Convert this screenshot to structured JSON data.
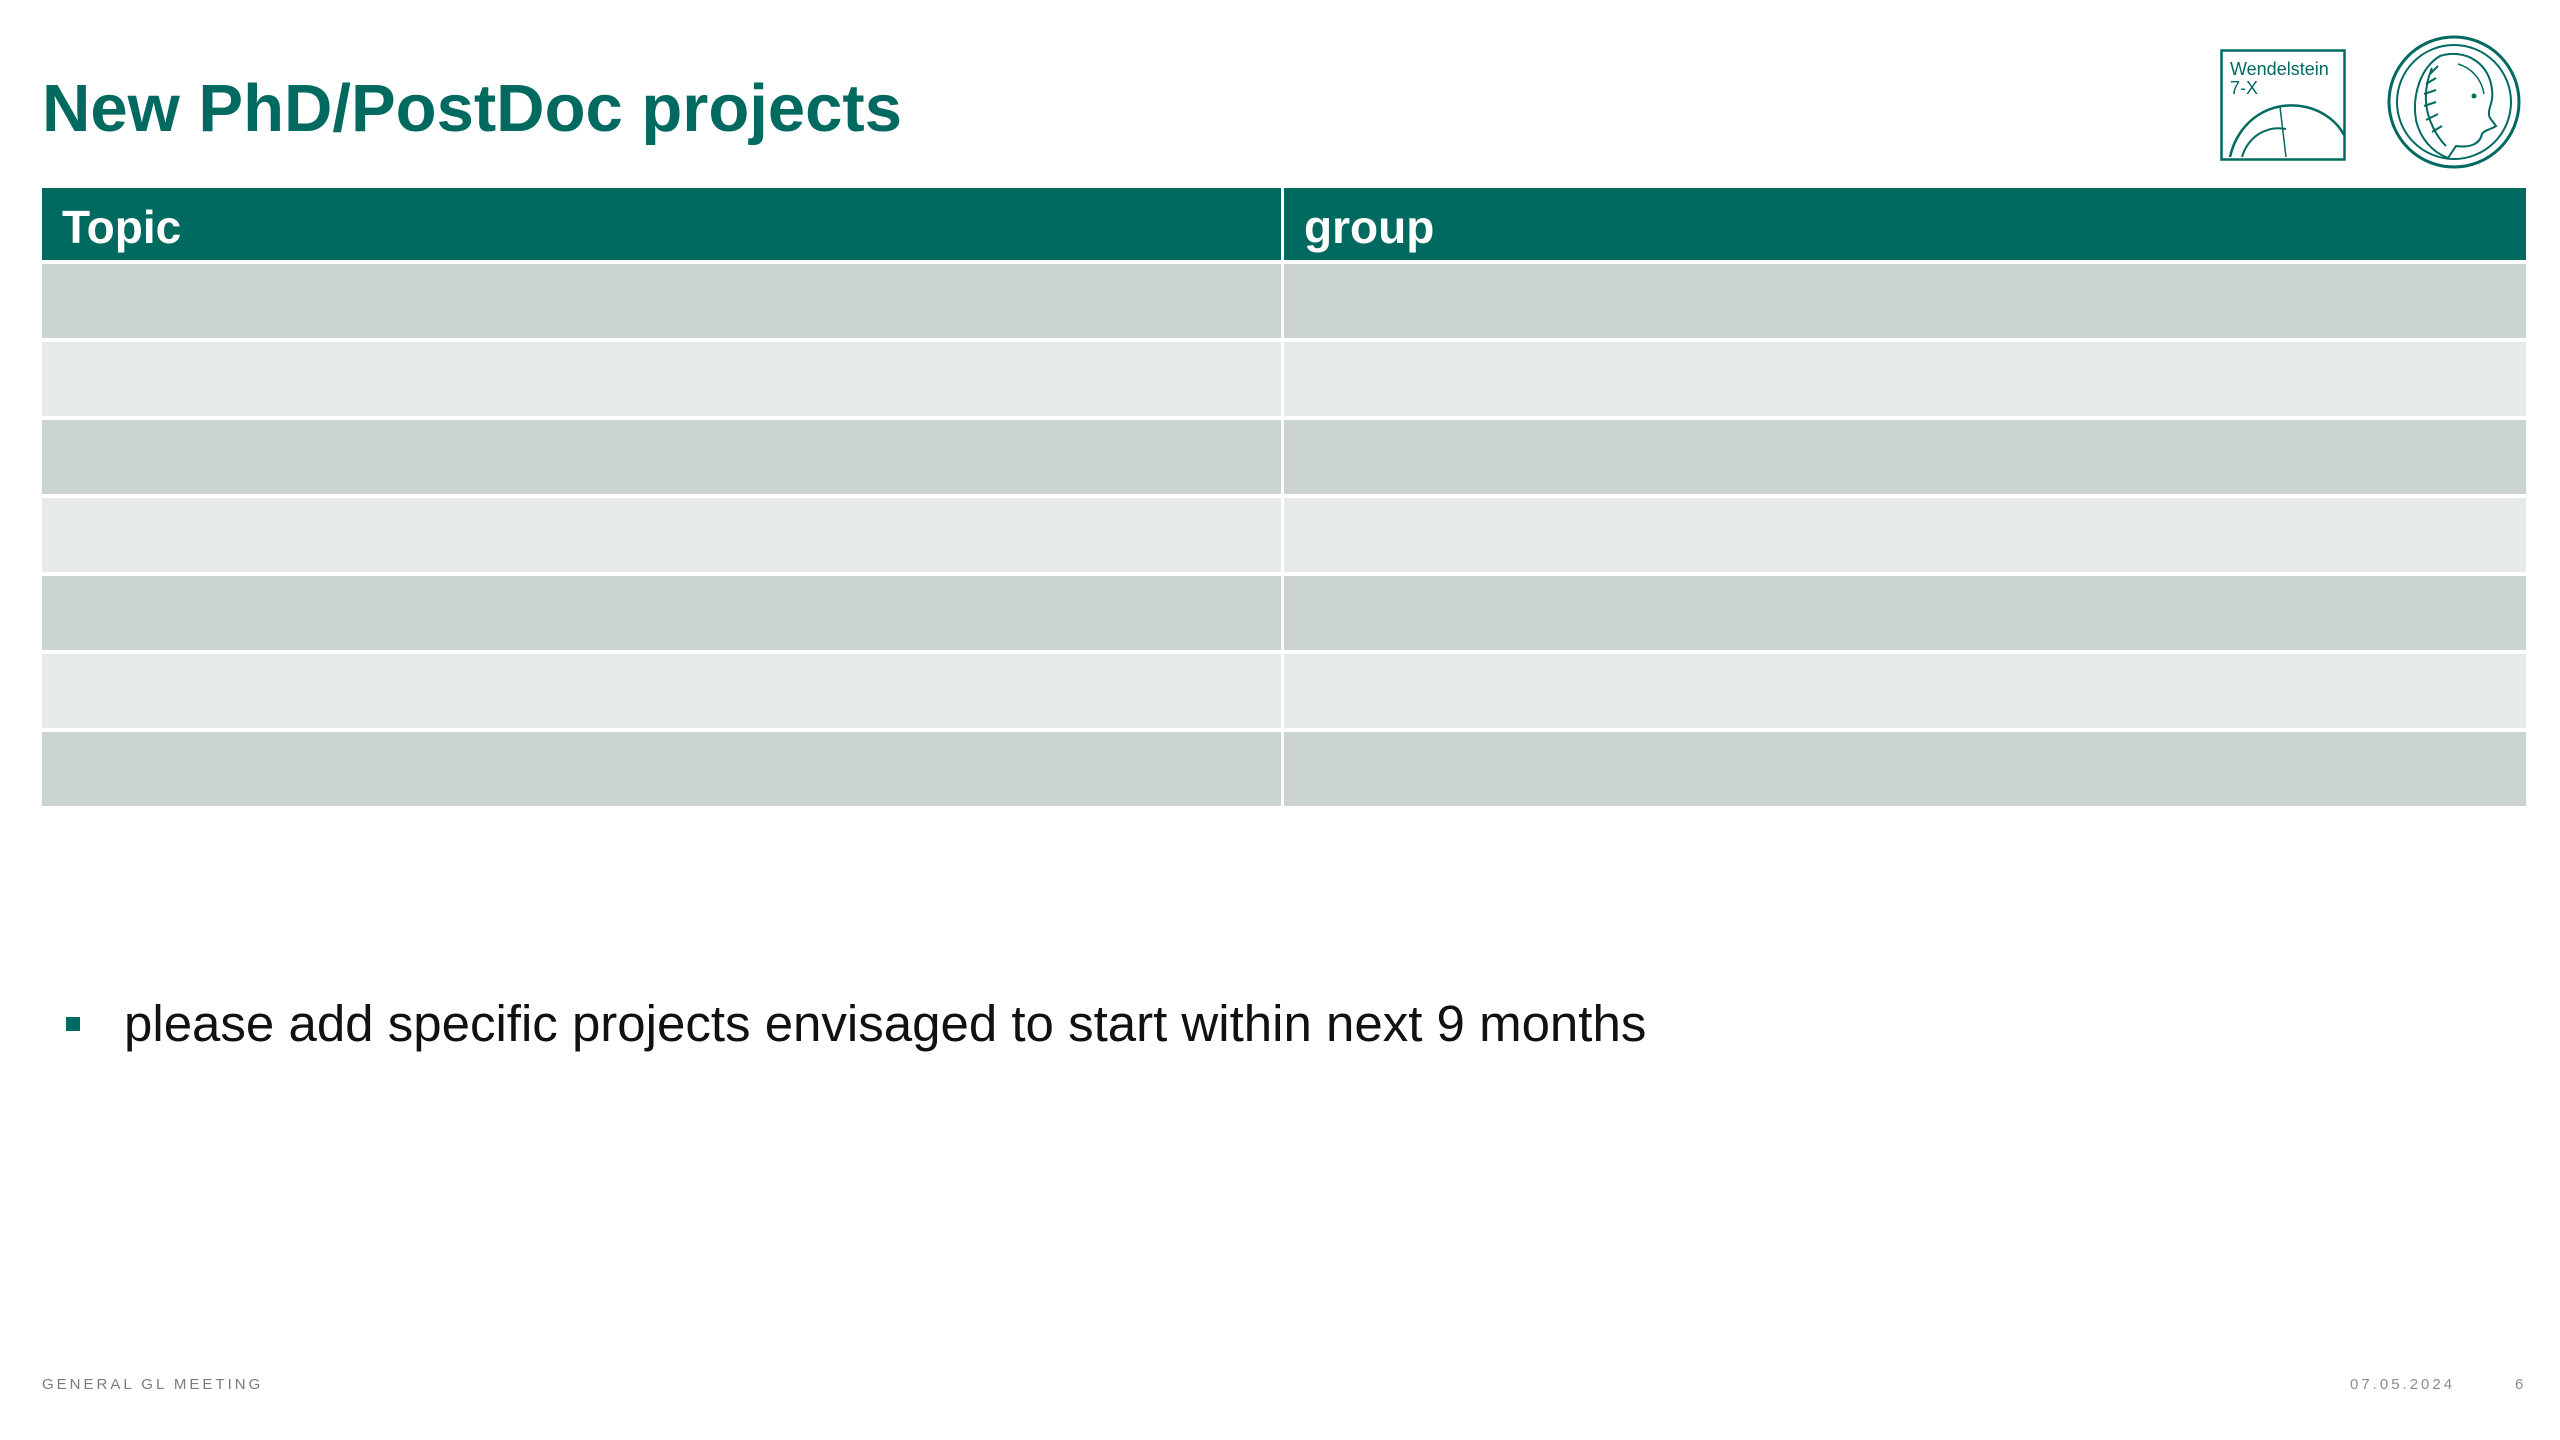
{
  "slide": {
    "title": "New PhD/PostDoc projects"
  },
  "logos": {
    "w7x": {
      "line1": "Wendelstein",
      "line2": "7-X",
      "icon": "wendelstein-7x-logo"
    },
    "mpg": {
      "icon": "max-planck-minerva-logo"
    }
  },
  "table": {
    "headers": [
      "Topic",
      "group"
    ],
    "rows": [
      [
        "",
        ""
      ],
      [
        "",
        ""
      ],
      [
        "",
        ""
      ],
      [
        "",
        ""
      ],
      [
        "",
        ""
      ],
      [
        "",
        ""
      ],
      [
        "",
        ""
      ]
    ]
  },
  "bullets": [
    "please add specific projects envisaged to start within next 9 months"
  ],
  "footer": {
    "left": "GENERAL GL MEETING",
    "date": "07.05.2024",
    "page": "6"
  },
  "colors": {
    "accent": "#016a60",
    "row_dark": "#cbd4d2",
    "row_light": "#e6eae9"
  }
}
